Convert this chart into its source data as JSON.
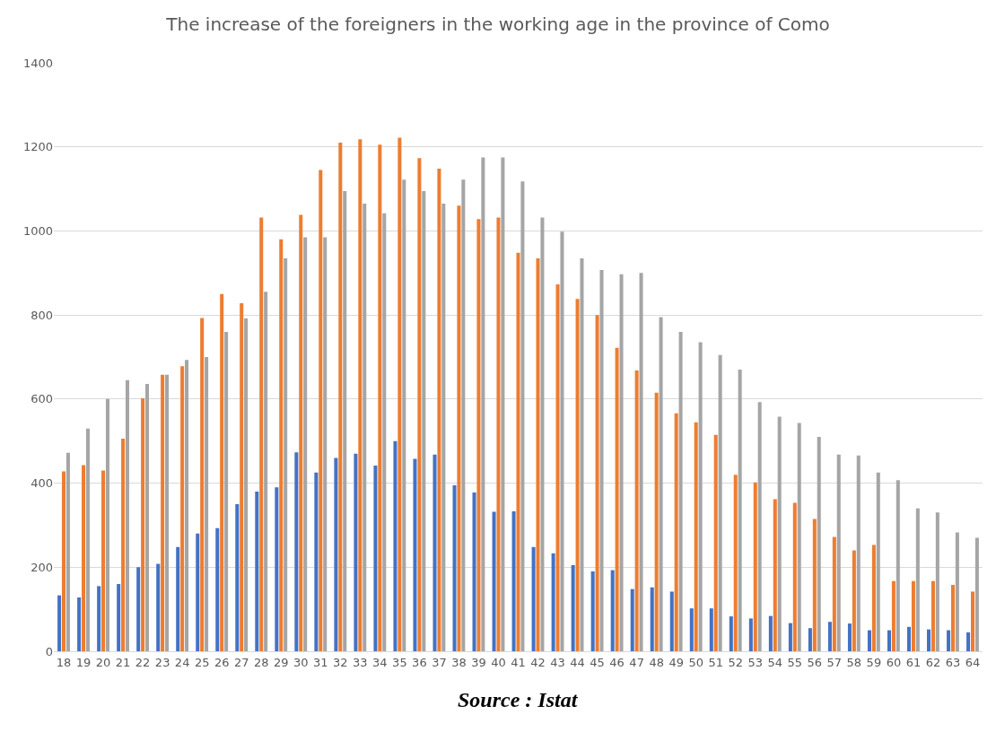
{
  "chart_data": {
    "type": "bar",
    "title": "The increase of the foreigners in the working age in the province of Como",
    "categories": [
      "18",
      "19",
      "20",
      "21",
      "22",
      "23",
      "24",
      "25",
      "26",
      "27",
      "28",
      "29",
      "30",
      "31",
      "32",
      "33",
      "34",
      "35",
      "36",
      "37",
      "38",
      "39",
      "40",
      "41",
      "42",
      "43",
      "44",
      "45",
      "46",
      "47",
      "48",
      "49",
      "50",
      "51",
      "52",
      "53",
      "54",
      "55",
      "56",
      "57",
      "58",
      "59",
      "60",
      "61",
      "62",
      "63",
      "64"
    ],
    "series": [
      {
        "color": "#4472c4",
        "values": [
          133,
          128,
          155,
          160,
          200,
          208,
          248,
          280,
          293,
          350,
          380,
          390,
          473,
          425,
          460,
          470,
          442,
          500,
          458,
          468,
          395,
          378,
          332,
          333,
          248,
          233,
          205,
          190,
          193,
          148,
          152,
          142,
          102,
          102,
          83,
          78,
          84,
          67,
          55,
          70,
          66,
          50,
          50,
          58,
          52,
          50,
          45
        ]
      },
      {
        "color": "#ed7d31",
        "values": [
          428,
          443,
          430,
          506,
          602,
          658,
          678,
          793,
          850,
          828,
          1032,
          980,
          1038,
          1145,
          1210,
          1218,
          1205,
          1222,
          1173,
          1148,
          1060,
          1028,
          1032,
          948,
          935,
          873,
          838,
          800,
          722,
          668,
          615,
          566,
          545,
          515,
          420,
          402,
          362,
          353,
          315,
          272,
          240,
          253,
          167,
          167,
          167,
          158,
          142
        ]
      },
      {
        "color": "#a5a5a5",
        "values": [
          472,
          530,
          600,
          645,
          636,
          658,
          693,
          700,
          760,
          792,
          855,
          935,
          985,
          985,
          1095,
          1065,
          1042,
          1122,
          1095,
          1065,
          1122,
          1175,
          1175,
          1118,
          1032,
          998,
          935,
          907,
          897,
          900,
          795,
          760,
          735,
          705,
          670,
          593,
          558,
          543,
          510,
          468,
          466,
          425,
          407,
          340,
          330,
          283,
          270
        ]
      }
    ],
    "ylim": [
      0,
      1400
    ],
    "yticks": [
      0,
      200,
      400,
      600,
      800,
      1000,
      1200,
      1400
    ],
    "grid": "y",
    "annotations": [
      "Source : Istat"
    ]
  }
}
